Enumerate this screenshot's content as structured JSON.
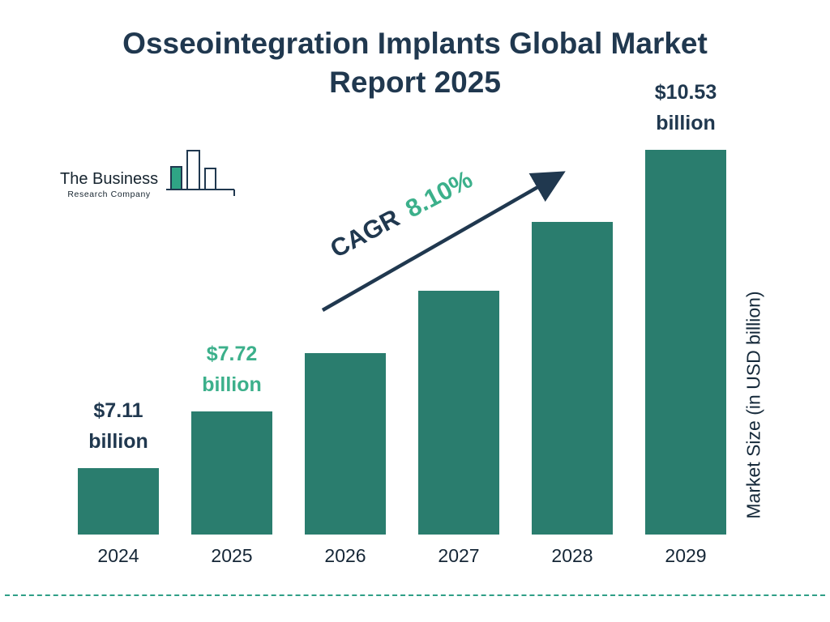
{
  "title": "Osseointegration Implants Global Market Report 2025",
  "logo": {
    "line1": "The Business",
    "line2": "Research Company"
  },
  "cagr": {
    "label": "CAGR",
    "value": "8.10%"
  },
  "colors": {
    "bar": "#2a7d6e",
    "navy": "#20384f",
    "green": "#3cb08b",
    "dashed_rule": "#2f9f87"
  },
  "chart_data": {
    "type": "bar",
    "title": "Osseointegration Implants Global Market Report 2025",
    "categories": [
      "2024",
      "2025",
      "2026",
      "2027",
      "2028",
      "2029"
    ],
    "values": [
      7.11,
      7.72,
      8.35,
      9.02,
      9.76,
      10.53
    ],
    "unit": "USD billion",
    "ylabel": "Market Size (in USD billion)",
    "cagr_percent": 8.1,
    "legend": "none",
    "grid": "off",
    "annotations": [
      {
        "index": 0,
        "amount": "$7.11",
        "unit": "billion",
        "color": "navy"
      },
      {
        "index": 1,
        "amount": "$7.72",
        "unit": "billion",
        "color": "green"
      },
      {
        "index": 5,
        "amount": "$10.53",
        "unit": "billion",
        "color": "navy"
      }
    ]
  }
}
